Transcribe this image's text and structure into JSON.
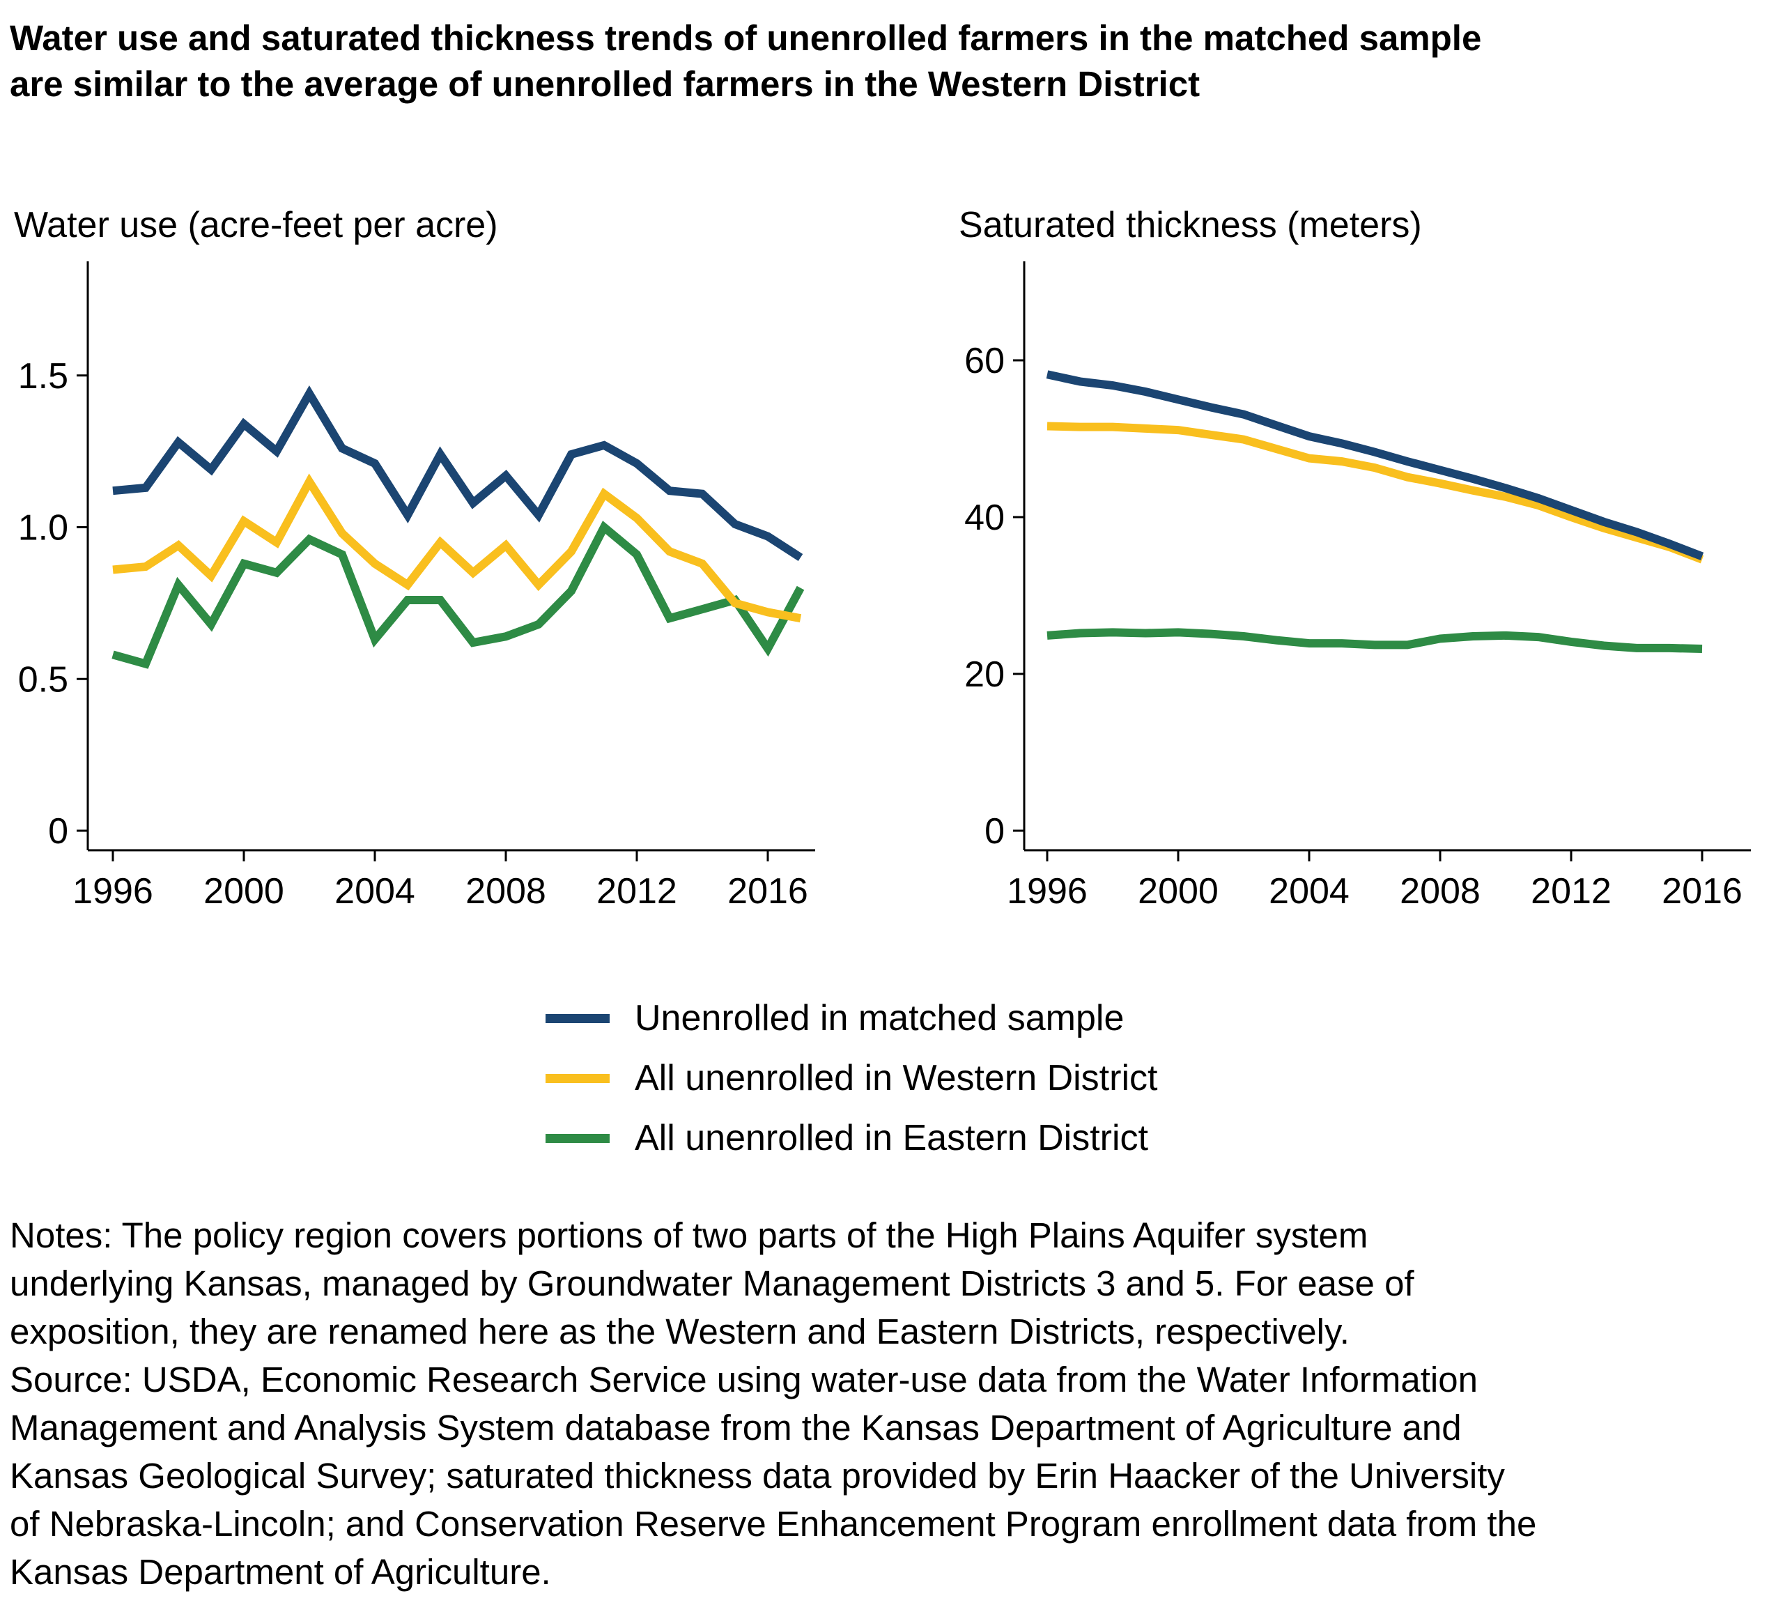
{
  "title_lines": [
    "Water use and saturated thickness trends of unenrolled farmers in the matched sample",
    "are similar to the average of unenrolled farmers in the Western District"
  ],
  "colors": {
    "matched": "#1b4572",
    "western": "#f9bf1e",
    "eastern": "#2e8b45"
  },
  "legend": [
    {
      "label": "Unenrolled in matched sample",
      "color": "#1b4572"
    },
    {
      "label": "All unenrolled in Western District",
      "color": "#f9bf1e"
    },
    {
      "label": "All unenrolled in Eastern District",
      "color": "#2e8b45"
    }
  ],
  "chart_data": [
    {
      "type": "line",
      "title": "Water use (acre-feet per acre)",
      "xlim": [
        1996,
        2017
      ],
      "ylim": [
        0,
        1.8
      ],
      "xticks": [
        1996,
        2000,
        2004,
        2008,
        2012,
        2016
      ],
      "yticks": [
        0,
        0.5,
        1.0,
        1.5
      ],
      "ytick_labels": [
        "0",
        "0.5",
        "1.0",
        "1.5"
      ],
      "x": [
        1996,
        1997,
        1998,
        1999,
        2000,
        2001,
        2002,
        2003,
        2004,
        2005,
        2006,
        2007,
        2008,
        2009,
        2010,
        2011,
        2012,
        2013,
        2014,
        2015,
        2016,
        2017
      ],
      "series": [
        {
          "name": "Unenrolled in matched sample",
          "color": "#1b4572",
          "values": [
            1.12,
            1.13,
            1.28,
            1.19,
            1.34,
            1.25,
            1.44,
            1.26,
            1.21,
            1.04,
            1.24,
            1.08,
            1.17,
            1.04,
            1.24,
            1.27,
            1.21,
            1.12,
            1.11,
            1.01,
            0.97,
            0.9
          ]
        },
        {
          "name": "All unenrolled in Western District",
          "color": "#f9bf1e",
          "values": [
            0.86,
            0.87,
            0.94,
            0.84,
            1.02,
            0.95,
            1.15,
            0.98,
            0.88,
            0.81,
            0.95,
            0.85,
            0.94,
            0.81,
            0.92,
            1.11,
            1.03,
            0.92,
            0.88,
            0.75,
            0.72,
            0.7
          ]
        },
        {
          "name": "All unenrolled in Eastern District",
          "color": "#2e8b45",
          "values": [
            0.58,
            0.55,
            0.81,
            0.68,
            0.88,
            0.85,
            0.96,
            0.91,
            0.63,
            0.76,
            0.76,
            0.62,
            0.64,
            0.68,
            0.79,
            1.0,
            0.91,
            0.7,
            0.73,
            0.76,
            0.6,
            0.8
          ]
        }
      ]
    },
    {
      "type": "line",
      "title": "Saturated thickness (meters)",
      "xlim": [
        1996,
        2017
      ],
      "ylim": [
        0,
        72
      ],
      "xticks": [
        1996,
        2000,
        2004,
        2008,
        2012,
        2016
      ],
      "yticks": [
        0,
        20,
        40,
        60
      ],
      "ytick_labels": [
        "0",
        "20",
        "40",
        "60"
      ],
      "x": [
        1996,
        1997,
        1998,
        1999,
        2000,
        2001,
        2002,
        2003,
        2004,
        2005,
        2006,
        2007,
        2008,
        2009,
        2010,
        2011,
        2012,
        2013,
        2014,
        2015,
        2016
      ],
      "series": [
        {
          "name": "Unenrolled in matched sample",
          "color": "#1b4572",
          "values": [
            58.2,
            57.3,
            56.8,
            56.0,
            55.0,
            54.0,
            53.1,
            51.7,
            50.3,
            49.4,
            48.3,
            47.1,
            46.0,
            44.9,
            43.7,
            42.4,
            40.9,
            39.4,
            38.1,
            36.6,
            35.0
          ]
        },
        {
          "name": "All unenrolled in Western District",
          "color": "#f9bf1e",
          "values": [
            51.6,
            51.5,
            51.5,
            51.3,
            51.1,
            50.5,
            49.9,
            48.7,
            47.5,
            47.1,
            46.3,
            45.1,
            44.3,
            43.4,
            42.6,
            41.5,
            40.0,
            38.6,
            37.4,
            36.2,
            34.6
          ]
        },
        {
          "name": "All unenrolled in Eastern District",
          "color": "#2e8b45",
          "values": [
            24.9,
            25.2,
            25.3,
            25.2,
            25.3,
            25.1,
            24.8,
            24.3,
            23.9,
            23.9,
            23.7,
            23.7,
            24.5,
            24.8,
            24.9,
            24.7,
            24.1,
            23.6,
            23.3,
            23.3,
            23.2
          ]
        }
      ]
    }
  ],
  "notes_lines": [
    "Notes: The policy region covers portions of two parts of the High Plains Aquifer system",
    "underlying Kansas, managed by Groundwater Management Districts 3 and 5. For ease of",
    "exposition, they are renamed here as the Western and Eastern Districts, respectively.",
    "Source: USDA, Economic Research Service using water-use data from the Water Information",
    "Management and Analysis System database from the Kansas Department of Agriculture and",
    "Kansas Geological Survey; saturated thickness data provided by Erin Haacker of the University",
    "of Nebraska-Lincoln; and Conservation Reserve Enhancement Program enrollment data from the",
    "Kansas Department of Agriculture."
  ]
}
